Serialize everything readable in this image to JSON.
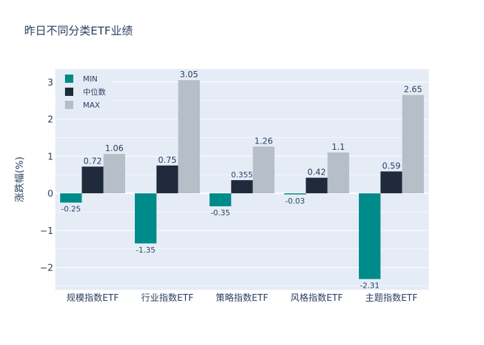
{
  "chart_data": {
    "type": "bar",
    "title": "昨日不同分类ETF业绩",
    "xlabel": "",
    "ylabel": "涨跌幅(%)",
    "categories": [
      "规模指数ETF",
      "行业指数ETF",
      "策略指数ETF",
      "风格指数ETF",
      "主题指数ETF"
    ],
    "series": [
      {
        "name": "MIN",
        "values": [
          -0.25,
          -1.35,
          -0.35,
          -0.03,
          -2.31
        ],
        "labels": [
          "-0.25",
          "-1.35",
          "-0.35",
          "-0.03",
          "-2.31"
        ],
        "color": "#008b8b"
      },
      {
        "name": "中位数",
        "values": [
          0.72,
          0.75,
          0.355,
          0.42,
          0.59
        ],
        "labels": [
          "0.72",
          "0.75",
          "0.355",
          "0.42",
          "0.59"
        ],
        "color": "#1f2a3c"
      },
      {
        "name": "MAX",
        "values": [
          1.06,
          3.05,
          1.26,
          1.1,
          2.65
        ],
        "labels": [
          "1.06",
          "3.05",
          "1.26",
          "1.1",
          "2.65"
        ],
        "color": "#b6bec8"
      }
    ],
    "ylim": [
      -2.6,
      3.35
    ],
    "yticks": [
      -2,
      -1,
      0,
      1,
      2,
      3
    ],
    "ytick_labels": [
      "−2",
      "−1",
      "0",
      "1",
      "2",
      "3"
    ],
    "grid": true,
    "legend_position": "top-left",
    "plot_background": "#e5ecf6"
  }
}
